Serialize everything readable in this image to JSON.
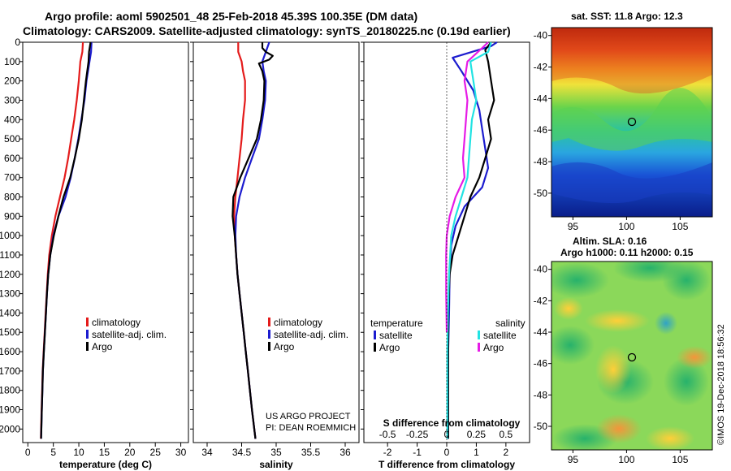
{
  "header": {
    "line1": "Argo profile: aoml 5902501_48 25-Feb-2018 45.39S 100.35E (DM data)",
    "line2": "Climatology: CARS2009. Satellite-adjusted climatology: synTS_20180225.nc (0.19d earlier)"
  },
  "colors": {
    "climatology": "#e41b1b",
    "satellite": "#1c1ccf",
    "argo": "#000000",
    "sat_salinity": "#22e3e3",
    "argo_salinity": "#e61be6"
  },
  "credits": {
    "project": "US ARGO PROJECT",
    "pi": "PI: DEAN ROEMMICH",
    "stamp": "©IMOS 19-Dec-2018 18:56:32"
  },
  "chart_data": [
    {
      "type": "line",
      "id": "temperature-profile",
      "xlabel": "temperature (deg C)",
      "ylabel": "",
      "xlim": [
        -1,
        31.5
      ],
      "ylim": [
        2070,
        0
      ],
      "xticks": [
        0,
        5,
        10,
        15,
        20,
        25,
        30
      ],
      "yticks": [
        0,
        100,
        200,
        300,
        400,
        500,
        600,
        700,
        800,
        900,
        1000,
        1100,
        1200,
        1300,
        1400,
        1500,
        1600,
        1700,
        1800,
        1900,
        2000
      ],
      "legend": [
        "climatology",
        "satellite-adj. clim.",
        "Argo"
      ],
      "series": [
        {
          "name": "climatology",
          "color": "#e41b1b",
          "points": [
            [
              10.8,
              0
            ],
            [
              10.7,
              50
            ],
            [
              10.3,
              100
            ],
            [
              10.0,
              200
            ],
            [
              9.6,
              300
            ],
            [
              9.1,
              400
            ],
            [
              8.5,
              500
            ],
            [
              7.9,
              600
            ],
            [
              7.2,
              700
            ],
            [
              6.3,
              800
            ],
            [
              5.4,
              900
            ],
            [
              4.7,
              1000
            ],
            [
              4.2,
              1100
            ],
            [
              3.9,
              1200
            ],
            [
              3.7,
              1300
            ],
            [
              3.5,
              1400
            ],
            [
              3.3,
              1500
            ],
            [
              3.1,
              1600
            ],
            [
              2.9,
              1700
            ],
            [
              2.8,
              1800
            ],
            [
              2.7,
              1900
            ],
            [
              2.55,
              2050
            ]
          ]
        },
        {
          "name": "satellite-adj. clim.",
          "color": "#1c1ccf",
          "points": [
            [
              12.5,
              0
            ],
            [
              12.4,
              50
            ],
            [
              12.1,
              100
            ],
            [
              11.5,
              200
            ],
            [
              11.1,
              300
            ],
            [
              10.5,
              400
            ],
            [
              9.9,
              500
            ],
            [
              9.2,
              600
            ],
            [
              8.4,
              700
            ],
            [
              7.4,
              800
            ],
            [
              6.0,
              900
            ],
            [
              5.0,
              1000
            ],
            [
              4.4,
              1100
            ],
            [
              4.0,
              1200
            ],
            [
              3.75,
              1300
            ],
            [
              3.55,
              1400
            ],
            [
              3.35,
              1500
            ],
            [
              3.15,
              1600
            ],
            [
              2.95,
              1700
            ],
            [
              2.85,
              1800
            ],
            [
              2.75,
              1900
            ],
            [
              2.6,
              2050
            ]
          ]
        },
        {
          "name": "Argo",
          "color": "#000000",
          "points": [
            [
              12.3,
              0
            ],
            [
              12.0,
              50
            ],
            [
              11.9,
              100
            ],
            [
              11.4,
              200
            ],
            [
              11.0,
              300
            ],
            [
              10.6,
              400
            ],
            [
              10.0,
              500
            ],
            [
              9.2,
              600
            ],
            [
              8.3,
              700
            ],
            [
              7.0,
              800
            ],
            [
              6.0,
              900
            ],
            [
              5.1,
              1000
            ],
            [
              4.4,
              1100
            ],
            [
              4.0,
              1200
            ],
            [
              3.75,
              1300
            ],
            [
              3.55,
              1400
            ],
            [
              3.35,
              1500
            ],
            [
              3.15,
              1600
            ],
            [
              2.95,
              1700
            ],
            [
              2.85,
              1800
            ],
            [
              2.75,
              1900
            ],
            [
              2.6,
              2050
            ]
          ]
        }
      ]
    },
    {
      "type": "line",
      "id": "salinity-profile",
      "xlabel": "salinity",
      "ylabel": "",
      "xlim": [
        33.8,
        36.2
      ],
      "ylim": [
        2070,
        0
      ],
      "xticks": [
        34,
        34.5,
        35,
        35.5,
        36
      ],
      "legend": [
        "climatology",
        "satellite-adj. clim.",
        "Argo"
      ],
      "series": [
        {
          "name": "climatology",
          "color": "#e41b1b",
          "points": [
            [
              34.45,
              0
            ],
            [
              34.45,
              50
            ],
            [
              34.5,
              100
            ],
            [
              34.52,
              150
            ],
            [
              34.55,
              200
            ],
            [
              34.55,
              300
            ],
            [
              34.52,
              400
            ],
            [
              34.5,
              500
            ],
            [
              34.47,
              600
            ],
            [
              34.44,
              700
            ],
            [
              34.41,
              800
            ],
            [
              34.39,
              900
            ],
            [
              34.4,
              1000
            ],
            [
              34.42,
              1100
            ],
            [
              34.44,
              1200
            ],
            [
              34.47,
              1300
            ],
            [
              34.5,
              1400
            ],
            [
              34.53,
              1500
            ],
            [
              34.56,
              1600
            ],
            [
              34.59,
              1700
            ],
            [
              34.62,
              1800
            ],
            [
              34.65,
              1900
            ],
            [
              34.7,
              2050
            ]
          ]
        },
        {
          "name": "satellite-adj. clim.",
          "color": "#1c1ccf",
          "points": [
            [
              34.9,
              0
            ],
            [
              34.85,
              50
            ],
            [
              34.8,
              100
            ],
            [
              34.82,
              150
            ],
            [
              34.85,
              200
            ],
            [
              34.84,
              300
            ],
            [
              34.8,
              400
            ],
            [
              34.75,
              500
            ],
            [
              34.65,
              600
            ],
            [
              34.55,
              700
            ],
            [
              34.47,
              800
            ],
            [
              34.42,
              900
            ],
            [
              34.41,
              1000
            ],
            [
              34.42,
              1100
            ],
            [
              34.44,
              1200
            ],
            [
              34.47,
              1300
            ],
            [
              34.5,
              1400
            ],
            [
              34.53,
              1500
            ],
            [
              34.56,
              1600
            ],
            [
              34.59,
              1700
            ],
            [
              34.62,
              1800
            ],
            [
              34.65,
              1900
            ],
            [
              34.7,
              2050
            ]
          ]
        },
        {
          "name": "Argo",
          "color": "#000000",
          "points": [
            [
              34.8,
              0
            ],
            [
              34.8,
              30
            ],
            [
              34.85,
              50
            ],
            [
              34.95,
              70
            ],
            [
              34.9,
              90
            ],
            [
              34.75,
              110
            ],
            [
              34.8,
              150
            ],
            [
              34.83,
              200
            ],
            [
              34.82,
              300
            ],
            [
              34.78,
              400
            ],
            [
              34.72,
              500
            ],
            [
              34.6,
              600
            ],
            [
              34.48,
              700
            ],
            [
              34.38,
              800
            ],
            [
              34.37,
              900
            ],
            [
              34.4,
              1000
            ],
            [
              34.42,
              1100
            ],
            [
              34.44,
              1200
            ],
            [
              34.47,
              1300
            ],
            [
              34.5,
              1400
            ],
            [
              34.53,
              1500
            ],
            [
              34.56,
              1600
            ],
            [
              34.59,
              1700
            ],
            [
              34.62,
              1800
            ],
            [
              34.65,
              1900
            ],
            [
              34.7,
              2050
            ]
          ]
        }
      ]
    },
    {
      "type": "line",
      "id": "difference-profile",
      "xlabel": "T difference from climatology",
      "top_label": "S difference from climatology",
      "ylabel": "",
      "xlim": [
        -2.8,
        2.8
      ],
      "ylim": [
        2070,
        0
      ],
      "xticks": [
        -2,
        -1,
        0,
        1,
        2
      ],
      "top_ticks": [
        "-0.5",
        "-0.25",
        "0",
        "0.25",
        "0.5"
      ],
      "legend_left_title": "temperature",
      "legend_right_title": "salinity",
      "legend": [
        "satellite",
        "Argo",
        "satellite",
        "Argo"
      ],
      "series": [
        {
          "name": "satellite",
          "group": "temperature",
          "color": "#1c1ccf",
          "points": [
            [
              1.7,
              0
            ],
            [
              1.5,
              20
            ],
            [
              0.2,
              80
            ],
            [
              0.5,
              150
            ],
            [
              0.9,
              250
            ],
            [
              1.1,
              350
            ],
            [
              1.2,
              450
            ],
            [
              1.3,
              550
            ],
            [
              1.4,
              650
            ],
            [
              1.2,
              750
            ],
            [
              0.6,
              850
            ],
            [
              0.3,
              950
            ],
            [
              0.15,
              1050
            ],
            [
              0.1,
              1200
            ],
            [
              0.08,
              1400
            ],
            [
              0.05,
              1600
            ],
            [
              0.05,
              1800
            ],
            [
              0.05,
              2050
            ]
          ]
        },
        {
          "name": "Argo",
          "group": "temperature",
          "color": "#000000",
          "points": [
            [
              1.5,
              0
            ],
            [
              1.3,
              40
            ],
            [
              1.4,
              100
            ],
            [
              1.5,
              200
            ],
            [
              1.6,
              300
            ],
            [
              1.4,
              400
            ],
            [
              1.5,
              500
            ],
            [
              1.3,
              600
            ],
            [
              1.1,
              700
            ],
            [
              0.8,
              800
            ],
            [
              0.6,
              900
            ],
            [
              0.4,
              1000
            ],
            [
              0.2,
              1100
            ],
            [
              0.1,
              1200
            ],
            [
              0.05,
              1400
            ],
            [
              0.05,
              1600
            ],
            [
              0.05,
              1800
            ],
            [
              0.05,
              2050
            ]
          ]
        },
        {
          "name": "satellite",
          "group": "salinity",
          "color": "#22e3e3",
          "points": [
            [
              1.5,
              0
            ],
            [
              1.4,
              50
            ],
            [
              0.8,
              100
            ],
            [
              0.9,
              200
            ],
            [
              1.0,
              300
            ],
            [
              0.85,
              400
            ],
            [
              0.8,
              500
            ],
            [
              0.75,
              600
            ],
            [
              0.7,
              700
            ],
            [
              0.5,
              800
            ],
            [
              0.3,
              900
            ],
            [
              0.15,
              1000
            ],
            [
              0.08,
              1200
            ],
            [
              0.04,
              1400
            ],
            [
              0.02,
              1600
            ],
            [
              0.02,
              1800
            ],
            [
              0.02,
              2050
            ]
          ]
        },
        {
          "name": "Argo",
          "group": "salinity",
          "color": "#e61be6",
          "points": [
            [
              1.4,
              0
            ],
            [
              1.2,
              30
            ],
            [
              0.7,
              100
            ],
            [
              0.6,
              200
            ],
            [
              0.7,
              300
            ],
            [
              0.65,
              400
            ],
            [
              0.6,
              500
            ],
            [
              0.55,
              600
            ],
            [
              0.6,
              700
            ],
            [
              0.3,
              800
            ],
            [
              0.1,
              900
            ],
            [
              0.0,
              1000
            ],
            [
              -0.02,
              1100
            ],
            [
              -0.02,
              1300
            ],
            [
              0.0,
              1500
            ]
          ]
        }
      ]
    },
    {
      "type": "heatmap",
      "id": "sst-map",
      "title": "sat. SST: 11.8 Argo: 12.3",
      "xlim": [
        93,
        108
      ],
      "ylim": [
        -51.5,
        -39.5
      ],
      "xticks": [
        95,
        100,
        105
      ],
      "yticks": [
        -40,
        -42,
        -44,
        -46,
        -48,
        -50
      ],
      "marker": [
        100.35,
        -45.39
      ]
    },
    {
      "type": "heatmap",
      "id": "sla-map",
      "title_line1": "Altim. SLA: 0.16",
      "title_line2": "Argo h1000: 0.11 h2000: 0.15",
      "xlim": [
        93,
        108
      ],
      "ylim": [
        -51.5,
        -39.5
      ],
      "xticks": [
        95,
        100,
        105
      ],
      "yticks": [
        -40,
        -42,
        -44,
        -46,
        -48,
        -50
      ],
      "marker": [
        100.35,
        -45.39
      ]
    }
  ]
}
